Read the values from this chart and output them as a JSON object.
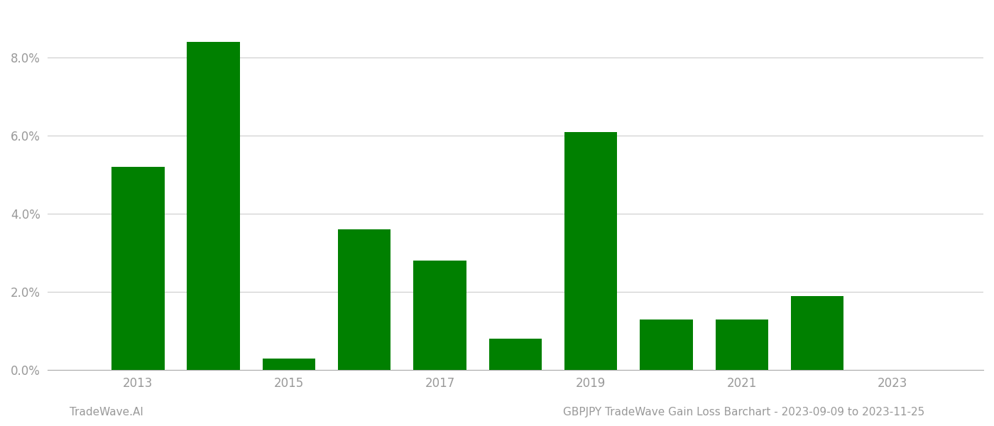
{
  "years": [
    2013,
    2014,
    2015,
    2016,
    2017,
    2018,
    2019,
    2020,
    2021,
    2022,
    2023
  ],
  "values": [
    0.052,
    0.084,
    0.003,
    0.036,
    0.028,
    0.008,
    0.061,
    0.013,
    0.013,
    0.019,
    0.0
  ],
  "bar_color": "#008000",
  "background_color": "#ffffff",
  "grid_color": "#cccccc",
  "axis_color": "#aaaaaa",
  "tick_label_color": "#999999",
  "ylim": [
    0,
    0.092
  ],
  "yticks": [
    0.0,
    0.02,
    0.04,
    0.06,
    0.08
  ],
  "xtick_positions": [
    2013,
    2015,
    2017,
    2019,
    2021,
    2023
  ],
  "footer_left": "TradeWave.AI",
  "footer_right": "GBPJPY TradeWave Gain Loss Barchart - 2023-09-09 to 2023-11-25",
  "footer_color": "#999999",
  "footer_fontsize": 11,
  "bar_width": 0.7
}
